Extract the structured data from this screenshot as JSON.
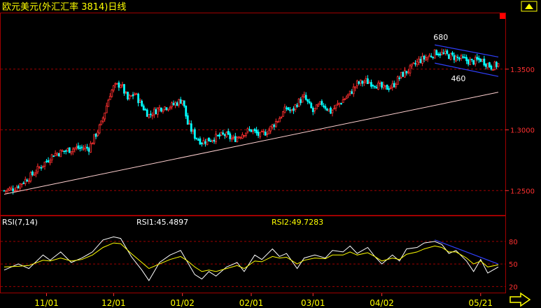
{
  "header": {
    "title": "欧元美元(外汇汇率 3814)日线"
  },
  "rsi_panel": {
    "label": "RSI(7,14)",
    "rsi1_text": "RSI1:45.4897",
    "rsi2_text": "RSI2:49.7283"
  },
  "colors": {
    "background": "#000000",
    "frame": "#a00000",
    "grid": "#a00000",
    "up_candle": "#ff3030",
    "down_candle": "#00ffff",
    "trendline": "#ffd0d0",
    "channel": "#3040ff",
    "rsi1_line": "#ffffff",
    "rsi2_line": "#ffff00",
    "text_yellow": "#ffff00",
    "text_white": "#ffffff",
    "axis_text": "#ff3030"
  },
  "chart_data": [
    {
      "type": "candlestick",
      "title": "欧元美元(外汇汇率 3814)日线",
      "x_tick_labels": [
        "11/01",
        "12/01",
        "01/02",
        "02/01",
        "03/01",
        "04/02",
        "05/21"
      ],
      "y_tick_labels": [
        "1.3500",
        "1.3000",
        "1.2500"
      ],
      "ylim": [
        1.23,
        1.396
      ],
      "grid": true,
      "annotations": [
        "680",
        "460"
      ],
      "close_path": [
        [
          0,
          1.25
        ],
        [
          6,
          1.252
        ],
        [
          15,
          1.262
        ],
        [
          28,
          1.28
        ],
        [
          40,
          1.285
        ],
        [
          48,
          1.285
        ],
        [
          55,
          1.305
        ],
        [
          60,
          1.33
        ],
        [
          62,
          1.335
        ],
        [
          66,
          1.338
        ],
        [
          70,
          1.325
        ],
        [
          74,
          1.33
        ],
        [
          78,
          1.32
        ],
        [
          82,
          1.312
        ],
        [
          88,
          1.318
        ],
        [
          95,
          1.32
        ],
        [
          101,
          1.325
        ],
        [
          104,
          1.305
        ],
        [
          108,
          1.295
        ],
        [
          112,
          1.29
        ],
        [
          118,
          1.293
        ],
        [
          125,
          1.296
        ],
        [
          130,
          1.292
        ],
        [
          136,
          1.298
        ],
        [
          140,
          1.3
        ],
        [
          145,
          1.295
        ],
        [
          150,
          1.3
        ],
        [
          156,
          1.31
        ],
        [
          160,
          1.318
        ],
        [
          163,
          1.315
        ],
        [
          166,
          1.322
        ],
        [
          170,
          1.327
        ],
        [
          175,
          1.315
        ],
        [
          180,
          1.322
        ],
        [
          185,
          1.315
        ],
        [
          190,
          1.322
        ],
        [
          196,
          1.33
        ],
        [
          200,
          1.338
        ],
        [
          205,
          1.34
        ],
        [
          210,
          1.338
        ],
        [
          215,
          1.334
        ],
        [
          220,
          1.336
        ],
        [
          225,
          1.345
        ],
        [
          230,
          1.35
        ],
        [
          235,
          1.357
        ],
        [
          240,
          1.36
        ],
        [
          245,
          1.364
        ],
        [
          250,
          1.362
        ],
        [
          255,
          1.36
        ],
        [
          260,
          1.358
        ],
        [
          265,
          1.356
        ],
        [
          270,
          1.358
        ],
        [
          273,
          1.355
        ],
        [
          276,
          1.352
        ],
        [
          280,
          1.354
        ]
      ],
      "support_line": {
        "from": [
          0,
          1.247
        ],
        "to": [
          280,
          1.331
        ]
      },
      "channel_upper": {
        "from": [
          244,
          1.37
        ],
        "to": [
          280,
          1.36
        ]
      },
      "channel_lower": {
        "from": [
          244,
          1.355
        ],
        "to": [
          280,
          1.344
        ]
      }
    },
    {
      "type": "line",
      "title": "RSI(7,14)",
      "y_tick_labels": [
        "80",
        "50",
        "20"
      ],
      "ylim": [
        12,
        92
      ],
      "grid": true,
      "series": [
        {
          "name": "RSI1",
          "points": [
            [
              0,
              42
            ],
            [
              8,
              50
            ],
            [
              14,
              44
            ],
            [
              22,
              62
            ],
            [
              26,
              55
            ],
            [
              32,
              66
            ],
            [
              38,
              52
            ],
            [
              44,
              58
            ],
            [
              50,
              66
            ],
            [
              56,
              82
            ],
            [
              62,
              86
            ],
            [
              66,
              84
            ],
            [
              72,
              60
            ],
            [
              78,
              42
            ],
            [
              82,
              28
            ],
            [
              88,
              52
            ],
            [
              94,
              62
            ],
            [
              100,
              68
            ],
            [
              104,
              52
            ],
            [
              108,
              36
            ],
            [
              112,
              30
            ],
            [
              116,
              40
            ],
            [
              120,
              34
            ],
            [
              126,
              46
            ],
            [
              132,
              52
            ],
            [
              136,
              40
            ],
            [
              142,
              62
            ],
            [
              146,
              56
            ],
            [
              152,
              70
            ],
            [
              156,
              60
            ],
            [
              160,
              64
            ],
            [
              166,
              44
            ],
            [
              170,
              58
            ],
            [
              176,
              62
            ],
            [
              182,
              58
            ],
            [
              186,
              68
            ],
            [
              192,
              66
            ],
            [
              196,
              74
            ],
            [
              200,
              64
            ],
            [
              206,
              72
            ],
            [
              210,
              60
            ],
            [
              214,
              50
            ],
            [
              220,
              62
            ],
            [
              224,
              54
            ],
            [
              228,
              70
            ],
            [
              234,
              72
            ],
            [
              238,
              78
            ],
            [
              244,
              80
            ],
            [
              248,
              76
            ],
            [
              252,
              64
            ],
            [
              256,
              68
            ],
            [
              262,
              54
            ],
            [
              266,
              40
            ],
            [
              270,
              56
            ],
            [
              274,
              38
            ],
            [
              280,
              46
            ]
          ]
        },
        {
          "name": "RSI2",
          "points": [
            [
              0,
              46
            ],
            [
              8,
              47
            ],
            [
              14,
              48
            ],
            [
              22,
              55
            ],
            [
              26,
              54
            ],
            [
              32,
              58
            ],
            [
              38,
              54
            ],
            [
              44,
              56
            ],
            [
              50,
              62
            ],
            [
              56,
              72
            ],
            [
              62,
              78
            ],
            [
              66,
              77
            ],
            [
              72,
              64
            ],
            [
              78,
              52
            ],
            [
              82,
              44
            ],
            [
              88,
              50
            ],
            [
              94,
              56
            ],
            [
              100,
              60
            ],
            [
              104,
              54
            ],
            [
              108,
              46
            ],
            [
              112,
              40
            ],
            [
              116,
              42
            ],
            [
              120,
              40
            ],
            [
              126,
              44
            ],
            [
              132,
              48
            ],
            [
              136,
              44
            ],
            [
              142,
              54
            ],
            [
              146,
              53
            ],
            [
              152,
              60
            ],
            [
              156,
              58
            ],
            [
              160,
              59
            ],
            [
              166,
              50
            ],
            [
              170,
              55
            ],
            [
              176,
              58
            ],
            [
              182,
              57
            ],
            [
              186,
              62
            ],
            [
              192,
              62
            ],
            [
              196,
              66
            ],
            [
              200,
              62
            ],
            [
              206,
              65
            ],
            [
              210,
              60
            ],
            [
              214,
              54
            ],
            [
              220,
              58
            ],
            [
              224,
              56
            ],
            [
              228,
              63
            ],
            [
              234,
              66
            ],
            [
              238,
              70
            ],
            [
              244,
              74
            ],
            [
              248,
              72
            ],
            [
              252,
              66
            ],
            [
              256,
              66
            ],
            [
              262,
              58
            ],
            [
              266,
              50
            ],
            [
              270,
              54
            ],
            [
              274,
              46
            ],
            [
              280,
              49
            ]
          ]
        }
      ],
      "channel": {
        "from": [
          244,
          82
        ],
        "to": [
          280,
          50
        ]
      }
    }
  ]
}
